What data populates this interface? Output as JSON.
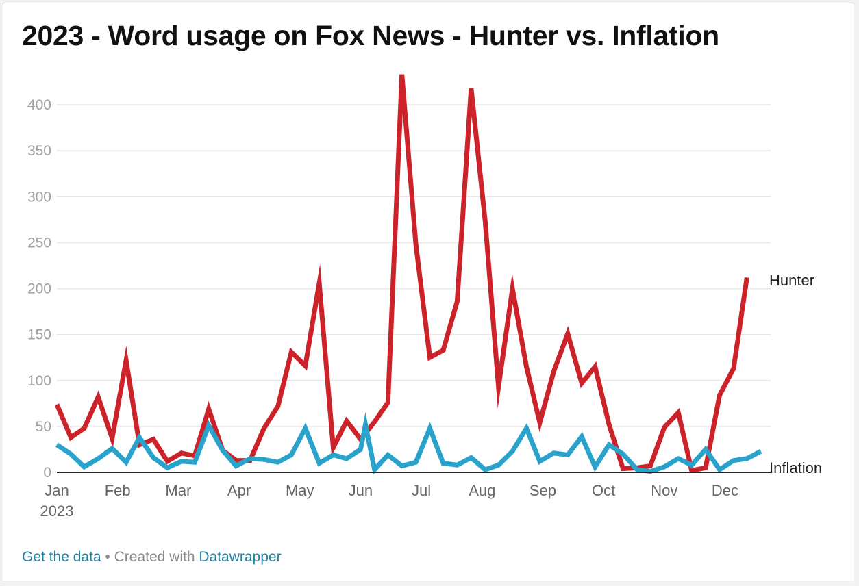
{
  "title": "2023 - Word usage on Fox News - Hunter vs. Inflation",
  "footer": {
    "get_data": "Get the data",
    "separator": " • Created with ",
    "datawrapper": "Datawrapper"
  },
  "colors": {
    "hunter": "#cc2229",
    "inflation": "#2aa3cc",
    "grid": "#e6e6e6",
    "axis": "#222222",
    "link": "#1d81a2"
  },
  "chart_data": {
    "type": "line",
    "title": "2023 - Word usage on Fox News - Hunter vs. Inflation",
    "xlabel": "",
    "ylabel": "",
    "ylim": [
      0,
      450
    ],
    "yticks": [
      0,
      50,
      100,
      150,
      200,
      250,
      300,
      350,
      400
    ],
    "xrange": [
      0,
      11.75
    ],
    "xticks": [
      {
        "pos": 0,
        "label": "Jan",
        "sublabel": "2023"
      },
      {
        "pos": 1,
        "label": "Feb"
      },
      {
        "pos": 2,
        "label": "Mar"
      },
      {
        "pos": 3,
        "label": "Apr"
      },
      {
        "pos": 4,
        "label": "May"
      },
      {
        "pos": 5,
        "label": "Jun"
      },
      {
        "pos": 6,
        "label": "Jul"
      },
      {
        "pos": 7,
        "label": "Aug"
      },
      {
        "pos": 8,
        "label": "Sep"
      },
      {
        "pos": 9,
        "label": "Oct"
      },
      {
        "pos": 10,
        "label": "Nov"
      },
      {
        "pos": 11,
        "label": "Dec"
      }
    ],
    "grid": true,
    "legend": "direct-labels-right",
    "series": [
      {
        "name": "Hunter",
        "x": [
          0.0,
          0.23,
          0.45,
          0.68,
          0.91,
          1.14,
          1.36,
          1.59,
          1.82,
          2.05,
          2.27,
          2.5,
          2.73,
          2.95,
          3.18,
          3.41,
          3.64,
          3.86,
          4.09,
          4.32,
          4.55,
          4.77,
          5.0,
          5.23,
          5.45,
          5.68,
          5.91,
          6.14,
          6.36,
          6.59,
          6.82,
          7.05,
          7.27,
          7.5,
          7.73,
          7.95,
          8.18,
          8.41,
          8.64,
          8.86,
          9.09,
          9.32,
          9.55,
          9.77,
          10.0,
          10.23,
          10.45,
          10.68,
          10.91,
          11.14,
          11.36,
          11.59,
          11.82
        ],
        "values": [
          74,
          38,
          48,
          82,
          37,
          122,
          30,
          36,
          12,
          21,
          18,
          69,
          24,
          13,
          13,
          48,
          72,
          131,
          116,
          206,
          27,
          56,
          36,
          55,
          76,
          433,
          248,
          125,
          133,
          186,
          418,
          274,
          93,
          200,
          115,
          54,
          110,
          151,
          97,
          115,
          52,
          4,
          5,
          7,
          49,
          65,
          2,
          5,
          84,
          113,
          212,
          null,
          null
        ]
      },
      {
        "name": "Inflation",
        "x": [
          0.0,
          0.23,
          0.45,
          0.68,
          0.91,
          1.14,
          1.36,
          1.59,
          1.82,
          2.05,
          2.27,
          2.5,
          2.73,
          2.95,
          3.18,
          3.41,
          3.64,
          3.86,
          4.09,
          4.32,
          4.55,
          4.77,
          5.0,
          5.08,
          5.23,
          5.45,
          5.68,
          5.91,
          6.14,
          6.36,
          6.59,
          6.82,
          7.05,
          7.27,
          7.5,
          7.73,
          7.95,
          8.18,
          8.41,
          8.64,
          8.86,
          9.09,
          9.32,
          9.55,
          9.77,
          10.0,
          10.23,
          10.45,
          10.68,
          10.91,
          11.14,
          11.36,
          11.59
        ],
        "values": [
          30,
          20,
          6,
          15,
          26,
          11,
          38,
          16,
          5,
          12,
          11,
          51,
          24,
          7,
          15,
          14,
          11,
          19,
          48,
          10,
          19,
          15,
          25,
          52,
          3,
          19,
          7,
          11,
          48,
          10,
          8,
          16,
          3,
          8,
          23,
          48,
          12,
          21,
          19,
          39,
          6,
          30,
          20,
          3,
          1,
          6,
          15,
          8,
          25,
          3,
          13,
          15,
          23
        ]
      }
    ],
    "labels": {
      "hunter": "Hunter",
      "inflation": "Inflation"
    }
  }
}
